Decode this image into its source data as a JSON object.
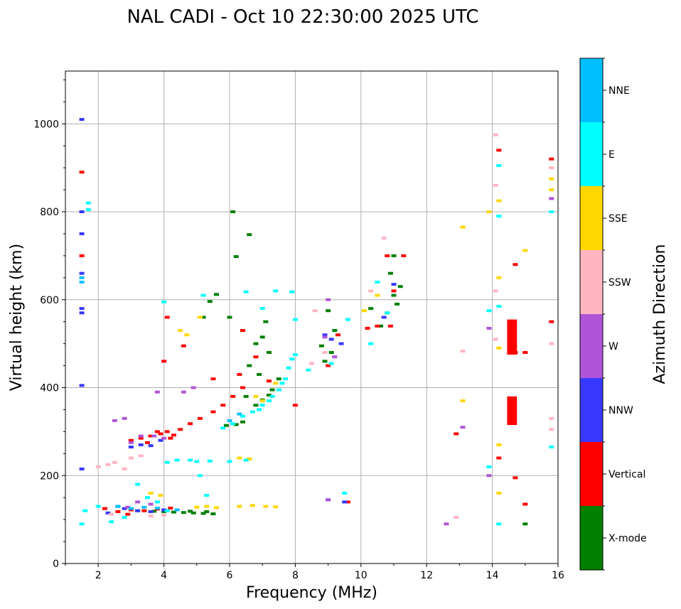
{
  "chart_data": {
    "type": "scatter",
    "title": "NAL CADI - Oct 10 22:30:00 2025 UTC",
    "xlabel": "Frequency (MHz)",
    "ylabel": "Virtual height (km)",
    "xlim": [
      1,
      16
    ],
    "ylim": [
      0,
      1120
    ],
    "xticks": [
      2,
      4,
      6,
      8,
      10,
      12,
      14,
      16
    ],
    "yticks": [
      0,
      200,
      400,
      600,
      800,
      1000
    ],
    "grid": true,
    "colorbar": {
      "label": "Azimuth Direction",
      "categories": [
        "X-mode",
        "Vertical",
        "NNW",
        "W",
        "SSW",
        "SSE",
        "E",
        "NNE"
      ]
    },
    "series": [
      {
        "name": "X-mode",
        "color": "#008000",
        "points": [
          [
            4.3,
            117
          ],
          [
            4.6,
            116
          ],
          [
            4.9,
            115
          ],
          [
            5.2,
            114
          ],
          [
            5.5,
            113
          ],
          [
            4.0,
            118
          ],
          [
            3.7,
            119
          ],
          [
            4.8,
            119
          ],
          [
            5.3,
            118
          ],
          [
            6.4,
            322
          ],
          [
            6.2,
            316
          ],
          [
            5.9,
            314
          ],
          [
            6.8,
            360
          ],
          [
            7.0,
            372
          ],
          [
            7.3,
            395
          ],
          [
            7.5,
            420
          ],
          [
            7.2,
            383
          ],
          [
            6.6,
            748
          ],
          [
            6.2,
            698
          ],
          [
            5.6,
            612
          ],
          [
            5.4,
            596
          ],
          [
            5.2,
            560
          ],
          [
            6.0,
            560
          ],
          [
            6.4,
            530
          ],
          [
            7.0,
            515
          ],
          [
            6.8,
            500
          ],
          [
            7.2,
            480
          ],
          [
            6.6,
            450
          ],
          [
            6.9,
            430
          ],
          [
            8.8,
            495
          ],
          [
            9.0,
            575
          ],
          [
            9.2,
            530
          ],
          [
            8.9,
            460
          ],
          [
            9.1,
            480
          ],
          [
            10.8,
            570
          ],
          [
            11.0,
            610
          ],
          [
            11.2,
            630
          ],
          [
            10.6,
            540
          ],
          [
            10.9,
            660
          ],
          [
            11.1,
            590
          ],
          [
            10.3,
            580
          ],
          [
            11.0,
            700
          ],
          [
            15.0,
            90
          ],
          [
            2.6,
            130
          ],
          [
            3.2,
            120
          ],
          [
            6.1,
            800
          ],
          [
            6.5,
            380
          ],
          [
            7.1,
            550
          ]
        ]
      },
      {
        "name": "Vertical",
        "color": "#ff0000",
        "points": [
          [
            1.5,
            700
          ],
          [
            1.5,
            890
          ],
          [
            3.0,
            280
          ],
          [
            3.3,
            285
          ],
          [
            3.6,
            290
          ],
          [
            3.9,
            295
          ],
          [
            4.1,
            300
          ],
          [
            4.3,
            292
          ],
          [
            4.5,
            305
          ],
          [
            4.8,
            318
          ],
          [
            5.1,
            330
          ],
          [
            5.5,
            345
          ],
          [
            5.8,
            360
          ],
          [
            6.1,
            380
          ],
          [
            6.4,
            400
          ],
          [
            3.5,
            275
          ],
          [
            3.8,
            300
          ],
          [
            4.2,
            285
          ],
          [
            4.1,
            560
          ],
          [
            4.0,
            460
          ],
          [
            6.3,
            430
          ],
          [
            6.4,
            530
          ],
          [
            6.8,
            470
          ],
          [
            8.0,
            360
          ],
          [
            7.2,
            415
          ],
          [
            4.6,
            495
          ],
          [
            5.5,
            420
          ],
          [
            2.2,
            125
          ],
          [
            2.6,
            118
          ],
          [
            3.0,
            122
          ],
          [
            3.4,
            120
          ],
          [
            3.8,
            124
          ],
          [
            4.2,
            126
          ],
          [
            2.9,
            112
          ],
          [
            9.0,
            450
          ],
          [
            9.3,
            520
          ],
          [
            9.6,
            140
          ],
          [
            10.2,
            535
          ],
          [
            10.8,
            700
          ],
          [
            10.9,
            540
          ],
          [
            11.3,
            700
          ],
          [
            11.0,
            620
          ],
          [
            10.5,
            540
          ],
          [
            12.9,
            295
          ],
          [
            14.2,
            240
          ],
          [
            14.2,
            940
          ],
          [
            14.7,
            680
          ],
          [
            14.7,
            195
          ],
          [
            14.7,
            480
          ],
          [
            15.0,
            480
          ],
          [
            15.0,
            135
          ],
          [
            15.8,
            920
          ],
          [
            15.8,
            550
          ]
        ]
      },
      {
        "name": "Vertical-block",
        "color": "#ff0000",
        "rects": [
          [
            14.45,
            14.75,
            475,
            555
          ],
          [
            14.45,
            14.75,
            315,
            380
          ]
        ]
      },
      {
        "name": "NNW",
        "color": "#3838ff",
        "points": [
          [
            1.5,
            1010
          ],
          [
            1.5,
            800
          ],
          [
            1.5,
            750
          ],
          [
            1.5,
            660
          ],
          [
            1.5,
            580
          ],
          [
            1.5,
            570
          ],
          [
            1.5,
            405
          ],
          [
            1.5,
            215
          ],
          [
            3.0,
            265
          ],
          [
            3.3,
            270
          ],
          [
            3.6,
            268
          ],
          [
            3.9,
            280
          ],
          [
            2.8,
            125
          ],
          [
            3.2,
            120
          ],
          [
            3.6,
            118
          ],
          [
            4.0,
            122
          ],
          [
            2.3,
            115
          ],
          [
            8.9,
            520
          ],
          [
            9.1,
            510
          ],
          [
            9.4,
            500
          ],
          [
            10.7,
            560
          ],
          [
            11.0,
            635
          ],
          [
            9.0,
            145
          ],
          [
            9.5,
            140
          ]
        ]
      },
      {
        "name": "W",
        "color": "#b055d8",
        "points": [
          [
            3.0,
            275
          ],
          [
            3.3,
            290
          ],
          [
            3.7,
            290
          ],
          [
            4.0,
            285
          ],
          [
            4.6,
            390
          ],
          [
            4.9,
            400
          ],
          [
            3.8,
            390
          ],
          [
            2.5,
            325
          ],
          [
            2.8,
            330
          ],
          [
            3.2,
            140
          ],
          [
            3.6,
            135
          ],
          [
            2.6,
            130
          ],
          [
            2.9,
            128
          ],
          [
            8.9,
            515
          ],
          [
            9.0,
            600
          ],
          [
            9.2,
            470
          ],
          [
            9.0,
            145
          ],
          [
            12.6,
            90
          ],
          [
            13.1,
            310
          ],
          [
            13.9,
            200
          ],
          [
            13.9,
            535
          ],
          [
            15.8,
            830
          ]
        ]
      },
      {
        "name": "SSW",
        "color": "#ffb6c1",
        "points": [
          [
            2.3,
            225
          ],
          [
            2.5,
            230
          ],
          [
            3.0,
            240
          ],
          [
            3.3,
            245
          ],
          [
            2.0,
            220
          ],
          [
            2.8,
            215
          ],
          [
            3.6,
            108
          ],
          [
            4.0,
            110
          ],
          [
            2.4,
            112
          ],
          [
            8.6,
            575
          ],
          [
            8.5,
            455
          ],
          [
            10.7,
            740
          ],
          [
            10.3,
            620
          ],
          [
            12.9,
            105
          ],
          [
            13.1,
            483
          ],
          [
            14.1,
            620
          ],
          [
            14.1,
            860
          ],
          [
            14.1,
            510
          ],
          [
            14.1,
            975
          ],
          [
            15.8,
            900
          ],
          [
            15.8,
            500
          ],
          [
            15.8,
            305
          ],
          [
            15.8,
            330
          ],
          [
            8.9,
            480
          ]
        ]
      },
      {
        "name": "SSE",
        "color": "#ffd700",
        "points": [
          [
            5.0,
            128
          ],
          [
            5.3,
            130
          ],
          [
            5.6,
            127
          ],
          [
            6.3,
            130
          ],
          [
            6.7,
            132
          ],
          [
            7.1,
            130
          ],
          [
            7.4,
            129
          ],
          [
            3.6,
            160
          ],
          [
            3.9,
            155
          ],
          [
            4.5,
            530
          ],
          [
            5.1,
            560
          ],
          [
            4.7,
            520
          ],
          [
            6.3,
            240
          ],
          [
            6.6,
            238
          ],
          [
            6.8,
            380
          ],
          [
            7.0,
            370
          ],
          [
            7.4,
            410
          ],
          [
            10.1,
            575
          ],
          [
            10.5,
            610
          ],
          [
            13.1,
            765
          ],
          [
            13.1,
            370
          ],
          [
            13.9,
            800
          ],
          [
            14.2,
            270
          ],
          [
            14.2,
            160
          ],
          [
            14.2,
            825
          ],
          [
            14.2,
            490
          ],
          [
            14.2,
            650
          ],
          [
            15.0,
            712
          ],
          [
            15.8,
            875
          ],
          [
            15.8,
            850
          ]
        ]
      },
      {
        "name": "E",
        "color": "#00ffff",
        "points": [
          [
            1.5,
            90
          ],
          [
            1.6,
            120
          ],
          [
            2.0,
            130
          ],
          [
            2.4,
            95
          ],
          [
            2.8,
            105
          ],
          [
            3.2,
            180
          ],
          [
            3.5,
            150
          ],
          [
            3.8,
            140
          ],
          [
            4.1,
            120
          ],
          [
            5.8,
            308
          ],
          [
            6.1,
            318
          ],
          [
            6.4,
            335
          ],
          [
            6.7,
            345
          ],
          [
            7.0,
            360
          ],
          [
            7.3,
            380
          ],
          [
            7.5,
            395
          ],
          [
            7.7,
            420
          ],
          [
            7.8,
            445
          ],
          [
            7.9,
            465
          ],
          [
            8.0,
            475
          ],
          [
            7.6,
            410
          ],
          [
            6.9,
            350
          ],
          [
            7.2,
            370
          ],
          [
            4.1,
            230
          ],
          [
            4.4,
            235
          ],
          [
            4.8,
            235
          ],
          [
            5.0,
            232
          ],
          [
            5.4,
            233
          ],
          [
            6.0,
            232
          ],
          [
            6.5,
            235
          ],
          [
            5.3,
            155
          ],
          [
            5.1,
            200
          ],
          [
            4.0,
            595
          ],
          [
            5.2,
            610
          ],
          [
            6.5,
            618
          ],
          [
            7.4,
            620
          ],
          [
            7.9,
            618
          ],
          [
            7.0,
            580
          ],
          [
            8.0,
            555
          ],
          [
            8.4,
            440
          ],
          [
            9.1,
            455
          ],
          [
            9.5,
            160
          ],
          [
            9.6,
            555
          ],
          [
            10.3,
            500
          ],
          [
            10.8,
            570
          ],
          [
            10.5,
            640
          ],
          [
            13.9,
            220
          ],
          [
            13.9,
            575
          ],
          [
            14.2,
            905
          ],
          [
            14.2,
            585
          ],
          [
            14.2,
            90
          ],
          [
            14.2,
            790
          ],
          [
            15.8,
            800
          ],
          [
            15.8,
            265
          ],
          [
            1.7,
            820
          ],
          [
            1.7,
            805
          ]
        ]
      },
      {
        "name": "NNE",
        "color": "#00bfff",
        "points": [
          [
            1.5,
            650
          ],
          [
            1.5,
            640
          ],
          [
            2.6,
            130
          ],
          [
            3.0,
            125
          ],
          [
            3.4,
            128
          ],
          [
            3.8,
            126
          ],
          [
            4.4,
            122
          ],
          [
            6.0,
            325
          ],
          [
            6.3,
            340
          ]
        ]
      }
    ]
  }
}
